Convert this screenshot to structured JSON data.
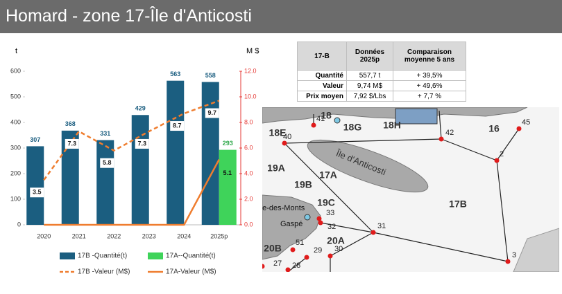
{
  "header": {
    "title": "Homard - zone 17-Île d'Anticosti"
  },
  "chart_data": {
    "type": "combo",
    "y_label": "t",
    "y2_label": "M $",
    "categories": [
      "2020",
      "2021",
      "2022",
      "2023",
      "2024",
      "2025p"
    ],
    "ylim": [
      0,
      600
    ],
    "yticks": [
      0,
      100,
      200,
      300,
      400,
      500,
      600
    ],
    "y2lim": [
      0,
      12
    ],
    "y2ticks": [
      {
        "value": 0,
        "label": "0.0"
      },
      {
        "value": 2,
        "label": "2.0"
      },
      {
        "value": 4,
        "label": "4.0"
      },
      {
        "value": 6,
        "label": "6.0"
      },
      {
        "value": 8,
        "label": "8.0"
      },
      {
        "value": 10,
        "label": "10.0"
      },
      {
        "value": 12,
        "label": "12.0"
      }
    ],
    "series": [
      {
        "name": "17B -Quantité(t)",
        "type": "bar",
        "color": "#1b5e80",
        "values": [
          307,
          368,
          331,
          429,
          563,
          558
        ]
      },
      {
        "name": "17A--Quantité(t)",
        "type": "bar",
        "color": "#3fd35a",
        "values": [
          null,
          null,
          null,
          null,
          null,
          293
        ]
      },
      {
        "name": "17B -Valeur (M$)",
        "type": "line",
        "dashed": true,
        "axis": "y2",
        "color": "#ef7d2f",
        "values": [
          3.5,
          7.3,
          5.8,
          7.3,
          8.7,
          9.7
        ]
      },
      {
        "name": "17A-Valeur (M$)",
        "type": "line",
        "dashed": false,
        "axis": "y2",
        "color": "#ef7d2f",
        "values": [
          0,
          0,
          0,
          0,
          0,
          5.1
        ],
        "value_labels": [
          null,
          null,
          null,
          null,
          null,
          "5.1"
        ]
      }
    ]
  },
  "table": {
    "header": [
      "17-B",
      "Données 2025p",
      "Comparaison moyenne 5 ans"
    ],
    "rows": [
      [
        "Quantité",
        "557,7 t",
        "+ 39,5%"
      ],
      [
        "Valeur",
        "9,74 M$",
        "+ 49,6%"
      ],
      [
        "Prix moyen",
        "7,92 $/Lbs",
        "+ 7,7 %"
      ]
    ]
  },
  "map": {
    "zones": [
      "18",
      "18E",
      "18G",
      "18H",
      "16",
      "19A",
      "19B",
      "17A",
      "17B",
      "19C",
      "20A",
      "20B"
    ],
    "places": [
      "Île d'Anticosti",
      "ne-des-Monts",
      "Gaspé"
    ],
    "points": [
      "41",
      "42",
      "45",
      "40",
      "2",
      "33",
      "32",
      "31",
      "51",
      "29",
      "30",
      "27",
      "28",
      "3"
    ]
  }
}
